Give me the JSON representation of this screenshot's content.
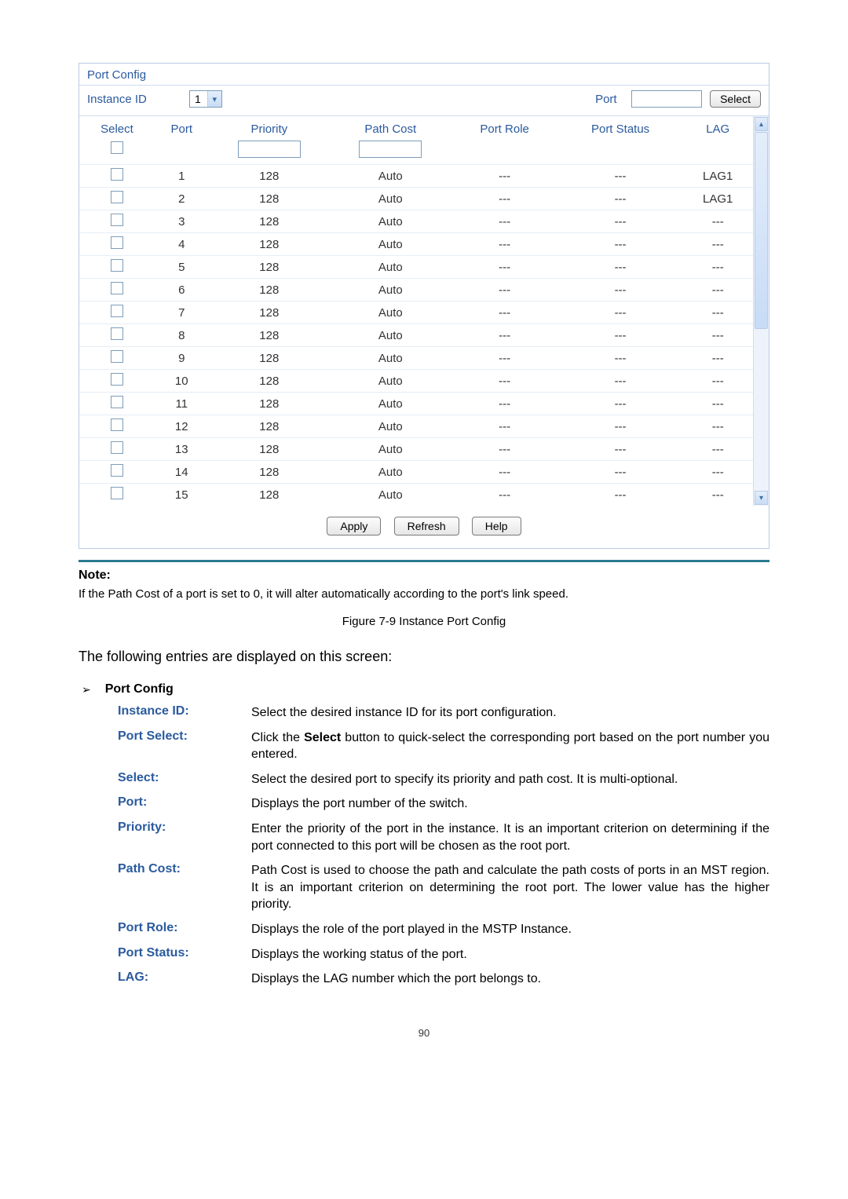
{
  "panel": {
    "title": "Port Config",
    "instance_label": "Instance ID",
    "instance_value": "1",
    "port_label": "Port",
    "port_value": "",
    "select_btn": "Select"
  },
  "columns": [
    "Select",
    "Port",
    "Priority",
    "Path Cost",
    "Port Role",
    "Port Status",
    "LAG"
  ],
  "filters": {
    "priority": "",
    "path_cost": ""
  },
  "rows": [
    {
      "port": "1",
      "priority": "128",
      "path_cost": "Auto",
      "role": "---",
      "status": "---",
      "lag": "LAG1"
    },
    {
      "port": "2",
      "priority": "128",
      "path_cost": "Auto",
      "role": "---",
      "status": "---",
      "lag": "LAG1"
    },
    {
      "port": "3",
      "priority": "128",
      "path_cost": "Auto",
      "role": "---",
      "status": "---",
      "lag": "---"
    },
    {
      "port": "4",
      "priority": "128",
      "path_cost": "Auto",
      "role": "---",
      "status": "---",
      "lag": "---"
    },
    {
      "port": "5",
      "priority": "128",
      "path_cost": "Auto",
      "role": "---",
      "status": "---",
      "lag": "---"
    },
    {
      "port": "6",
      "priority": "128",
      "path_cost": "Auto",
      "role": "---",
      "status": "---",
      "lag": "---"
    },
    {
      "port": "7",
      "priority": "128",
      "path_cost": "Auto",
      "role": "---",
      "status": "---",
      "lag": "---"
    },
    {
      "port": "8",
      "priority": "128",
      "path_cost": "Auto",
      "role": "---",
      "status": "---",
      "lag": "---"
    },
    {
      "port": "9",
      "priority": "128",
      "path_cost": "Auto",
      "role": "---",
      "status": "---",
      "lag": "---"
    },
    {
      "port": "10",
      "priority": "128",
      "path_cost": "Auto",
      "role": "---",
      "status": "---",
      "lag": "---"
    },
    {
      "port": "11",
      "priority": "128",
      "path_cost": "Auto",
      "role": "---",
      "status": "---",
      "lag": "---"
    },
    {
      "port": "12",
      "priority": "128",
      "path_cost": "Auto",
      "role": "---",
      "status": "---",
      "lag": "---"
    },
    {
      "port": "13",
      "priority": "128",
      "path_cost": "Auto",
      "role": "---",
      "status": "---",
      "lag": "---"
    },
    {
      "port": "14",
      "priority": "128",
      "path_cost": "Auto",
      "role": "---",
      "status": "---",
      "lag": "---"
    },
    {
      "port": "15",
      "priority": "128",
      "path_cost": "Auto",
      "role": "---",
      "status": "---",
      "lag": "---"
    }
  ],
  "actions": {
    "apply": "Apply",
    "refresh": "Refresh",
    "help": "Help"
  },
  "note_label": "Note:",
  "note_text": "If the Path Cost of a port is set to 0, it will alter automatically according to the port's link speed.",
  "fig_caption": "Figure 7-9 Instance Port Config",
  "intro": "The following entries are displayed on this screen:",
  "section_title": "Port Config",
  "defs": [
    {
      "term": "Instance ID:",
      "desc": "Select the desired instance ID for its port configuration."
    },
    {
      "term": "Port Select:",
      "desc": "Click the <b>Select</b> button to quick-select the corresponding port based on the port number you entered."
    },
    {
      "term": "Select:",
      "desc": "Select the desired port to specify its priority and path cost. It is multi-optional."
    },
    {
      "term": "Port:",
      "desc": "Displays the port number of the switch."
    },
    {
      "term": "Priority:",
      "desc": "Enter the priority of the port in the instance. It is an important criterion on determining if the port connected to this port will be chosen as the root port."
    },
    {
      "term": "Path Cost:",
      "desc": "Path Cost is used to choose the path and calculate the path costs of ports in an MST region. It is an important criterion on determining the root port. The lower value has the higher priority."
    },
    {
      "term": "Port Role:",
      "desc": "Displays the role of the port played in the MSTP Instance."
    },
    {
      "term": "Port Status:",
      "desc": "Displays the working status of the port."
    },
    {
      "term": "LAG:",
      "desc": "Displays the LAG number which the port belongs to."
    }
  ],
  "page_number": "90",
  "colors": {
    "heading": "#2a5a9e",
    "border": "#b8cce4",
    "row_border": "#e6eef7",
    "hr": "#2a7a90"
  }
}
